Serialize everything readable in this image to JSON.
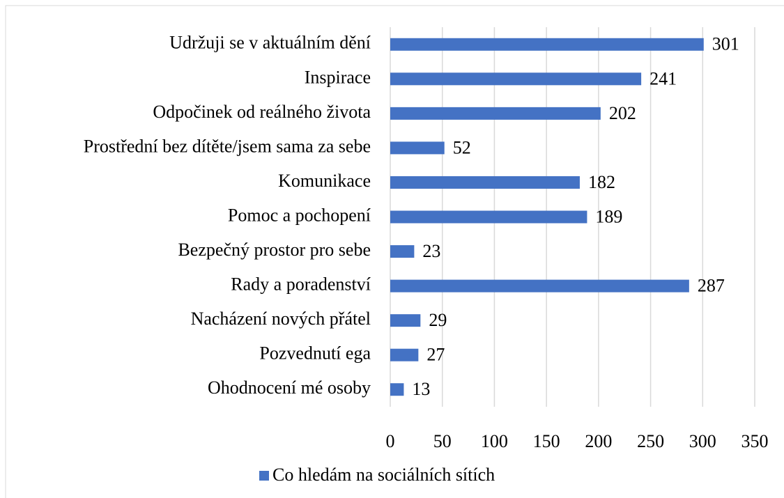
{
  "chart_data": {
    "type": "bar",
    "orientation": "horizontal",
    "categories": [
      "Udržuji se v aktuálním dění",
      "Inspirace",
      "Odpočinek od reálného života",
      "Prostřední bez dítěte/jsem sama za sebe",
      "Komunikace",
      "Pomoc a pochopení",
      "Bezpečný prostor pro sebe",
      "Rady a poradenství",
      "Nacházení nových přátel",
      "Pozvednutí ega",
      "Ohodnocení mé osoby"
    ],
    "series": [
      {
        "name": "Co hledám na sociálních sítích",
        "color": "#4472c4",
        "values": [
          301,
          241,
          202,
          52,
          182,
          189,
          23,
          287,
          29,
          27,
          13
        ]
      }
    ],
    "xlim": [
      0,
      350
    ],
    "xticks": [
      0,
      50,
      100,
      150,
      200,
      250,
      300,
      350
    ],
    "grid": true,
    "legend": "bottom"
  }
}
